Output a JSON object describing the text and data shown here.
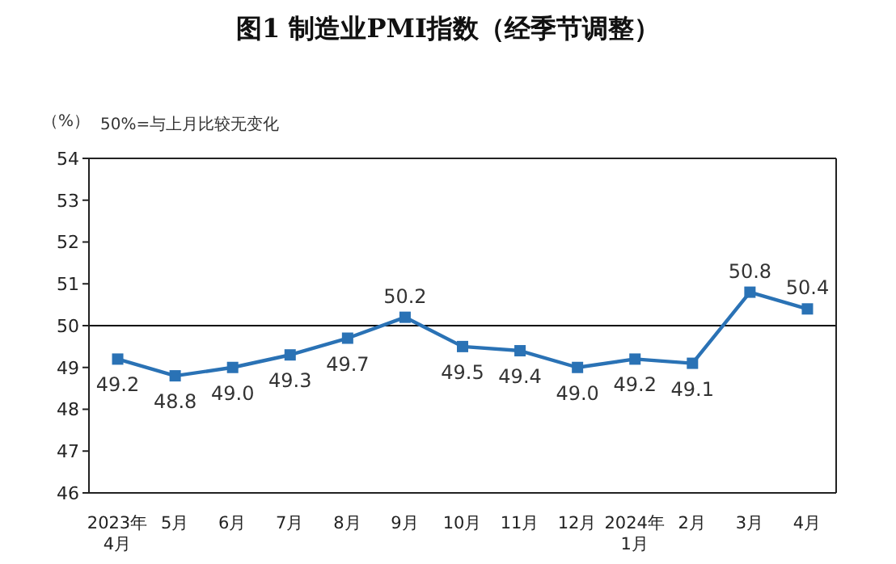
{
  "chart_data": {
    "type": "line",
    "title": "图1  制造业PMI指数（经季节调整）",
    "ylabel": "（%）",
    "annotations": [
      "50%=与上月比较无变化"
    ],
    "categories": [
      "2023年\n4月",
      "5月",
      "6月",
      "7月",
      "8月",
      "9月",
      "10月",
      "11月",
      "12月",
      "2024年\n1月",
      "2月",
      "3月",
      "4月"
    ],
    "series": [
      {
        "color": "#2a72b5",
        "values": [
          49.2,
          48.8,
          49.0,
          49.3,
          49.7,
          50.2,
          49.5,
          49.4,
          49.0,
          49.2,
          49.1,
          50.8,
          50.4
        ],
        "value_labels": [
          "49.2",
          "48.8",
          "49.0",
          "49.3",
          "49.7",
          "50.2",
          "49.5",
          "49.4",
          "49.0",
          "49.2",
          "49.1",
          "50.8",
          "50.4"
        ]
      }
    ],
    "ylim": [
      46,
      54
    ],
    "yticks": [
      46,
      47,
      48,
      49,
      50,
      51,
      52,
      53,
      54
    ],
    "ref_lines": [
      {
        "axis": "y",
        "value": 50,
        "color": "#000000"
      }
    ],
    "marker": "square",
    "line_style": "solid",
    "grid": false
  }
}
